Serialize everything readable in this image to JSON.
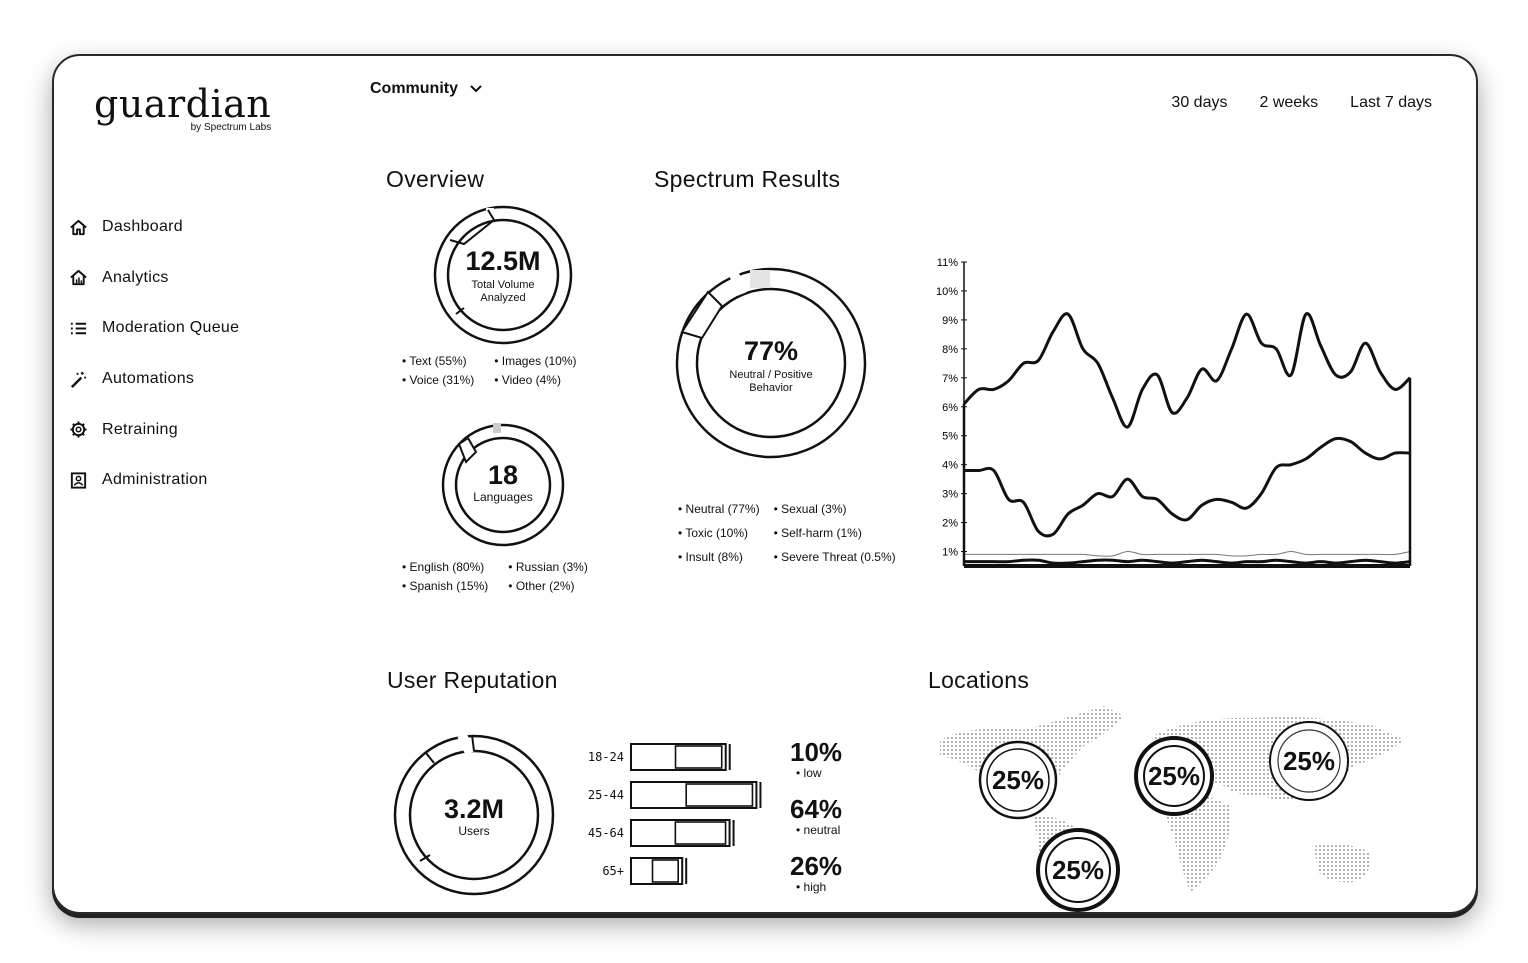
{
  "brand": {
    "name": "guardian",
    "sub": "by Spectrum Labs"
  },
  "nav": [
    {
      "label": "Dashboard",
      "icon": "home-icon"
    },
    {
      "label": "Analytics",
      "icon": "home-chart-icon"
    },
    {
      "label": "Moderation Queue",
      "icon": "list-icon"
    },
    {
      "label": "Automations",
      "icon": "magic-wand-icon"
    },
    {
      "label": "Retraining",
      "icon": "gear-icon"
    },
    {
      "label": "Administration",
      "icon": "admin-icon"
    }
  ],
  "header": {
    "community": "Community",
    "ranges": [
      "30 days",
      "2 weeks",
      "Last 7 days"
    ]
  },
  "overview": {
    "title": "Overview",
    "volume": {
      "value": "12.5M",
      "label": "Total Volume Analyzed",
      "legend": [
        "Text (55%)",
        "Images (10%)",
        "Voice (31%)",
        "Video (4%)"
      ]
    },
    "languages": {
      "value": "18",
      "label": "Languages",
      "legend": [
        "English (80%)",
        "Russian (3%)",
        "Spanish (15%)",
        "Other (2%)"
      ]
    }
  },
  "spectrum": {
    "title": "Spectrum Results",
    "value": "77%",
    "label": "Neutral / Positive Behavior",
    "legend": [
      "Neutral (77%)",
      "Sexual (3%)",
      "Toxic (10%)",
      "Self-harm (1%)",
      "Insult (8%)",
      "Severe Threat (0.5%)"
    ]
  },
  "chart_data": {
    "type": "area",
    "y_ticks": [
      "11%",
      "10%",
      "9%",
      "8%",
      "7%",
      "6%",
      "5%",
      "4%",
      "3%",
      "2%",
      "1%"
    ],
    "ylim": [
      0.5,
      11
    ],
    "x": [
      0,
      1,
      2,
      3,
      4,
      5,
      6,
      7,
      8,
      9,
      10,
      11,
      12,
      13,
      14,
      15,
      16,
      17,
      18,
      19,
      20,
      21,
      22,
      23,
      24,
      25,
      26,
      27,
      28,
      29,
      30
    ],
    "series": [
      {
        "values": [
          6.1,
          6.6,
          6.6,
          6.9,
          7.5,
          7.6,
          8.6,
          9.2,
          8.0,
          7.5,
          6.3,
          5.3,
          6.6,
          7.1,
          5.8,
          6.3,
          7.3,
          6.9,
          8.0,
          9.2,
          8.2,
          8.0,
          7.1,
          9.2,
          8.1,
          7.1,
          7.2,
          8.2,
          7.2,
          6.6,
          7.0
        ]
      },
      {
        "values": [
          3.8,
          3.8,
          3.8,
          2.8,
          2.7,
          1.7,
          1.6,
          2.3,
          2.6,
          3.0,
          2.9,
          3.5,
          2.9,
          2.8,
          2.3,
          2.1,
          2.6,
          2.8,
          2.7,
          2.5,
          3.0,
          3.9,
          4.0,
          4.2,
          4.6,
          4.9,
          4.8,
          4.4,
          4.2,
          4.4,
          4.4
        ]
      },
      {
        "values": [
          0.9,
          0.9,
          0.9,
          0.9,
          0.9,
          0.9,
          0.9,
          0.9,
          0.9,
          0.85,
          0.85,
          1.0,
          0.9,
          0.9,
          0.9,
          0.9,
          0.9,
          0.9,
          0.85,
          0.85,
          0.9,
          0.9,
          1.0,
          0.9,
          0.9,
          0.9,
          0.9,
          0.9,
          0.9,
          0.9,
          1.0
        ]
      },
      {
        "values": [
          0.65,
          0.65,
          0.65,
          0.65,
          0.7,
          0.7,
          0.6,
          0.6,
          0.65,
          0.7,
          0.7,
          0.65,
          0.7,
          0.65,
          0.6,
          0.65,
          0.7,
          0.65,
          0.6,
          0.65,
          0.65,
          0.7,
          0.65,
          0.6,
          0.65,
          0.6,
          0.65,
          0.7,
          0.65,
          0.6,
          0.65
        ]
      }
    ]
  },
  "reputation": {
    "title": "User Reputation",
    "value": "3.2M",
    "label": "Users",
    "age_groups": [
      {
        "label": "18-24",
        "total": 0.74,
        "part": 0.47
      },
      {
        "label": "25-44",
        "total": 0.98,
        "part": 0.44
      },
      {
        "label": "45-64",
        "total": 0.77,
        "part": 0.45
      },
      {
        "label": "65+",
        "total": 0.4,
        "part": 0.42
      }
    ],
    "levels": [
      {
        "pct": "10%",
        "label": "low"
      },
      {
        "pct": "64%",
        "label": "neutral"
      },
      {
        "pct": "26%",
        "label": "high"
      }
    ]
  },
  "locations": {
    "title": "Locations",
    "bubbles": [
      "25%",
      "25%",
      "25%",
      "25%"
    ]
  }
}
